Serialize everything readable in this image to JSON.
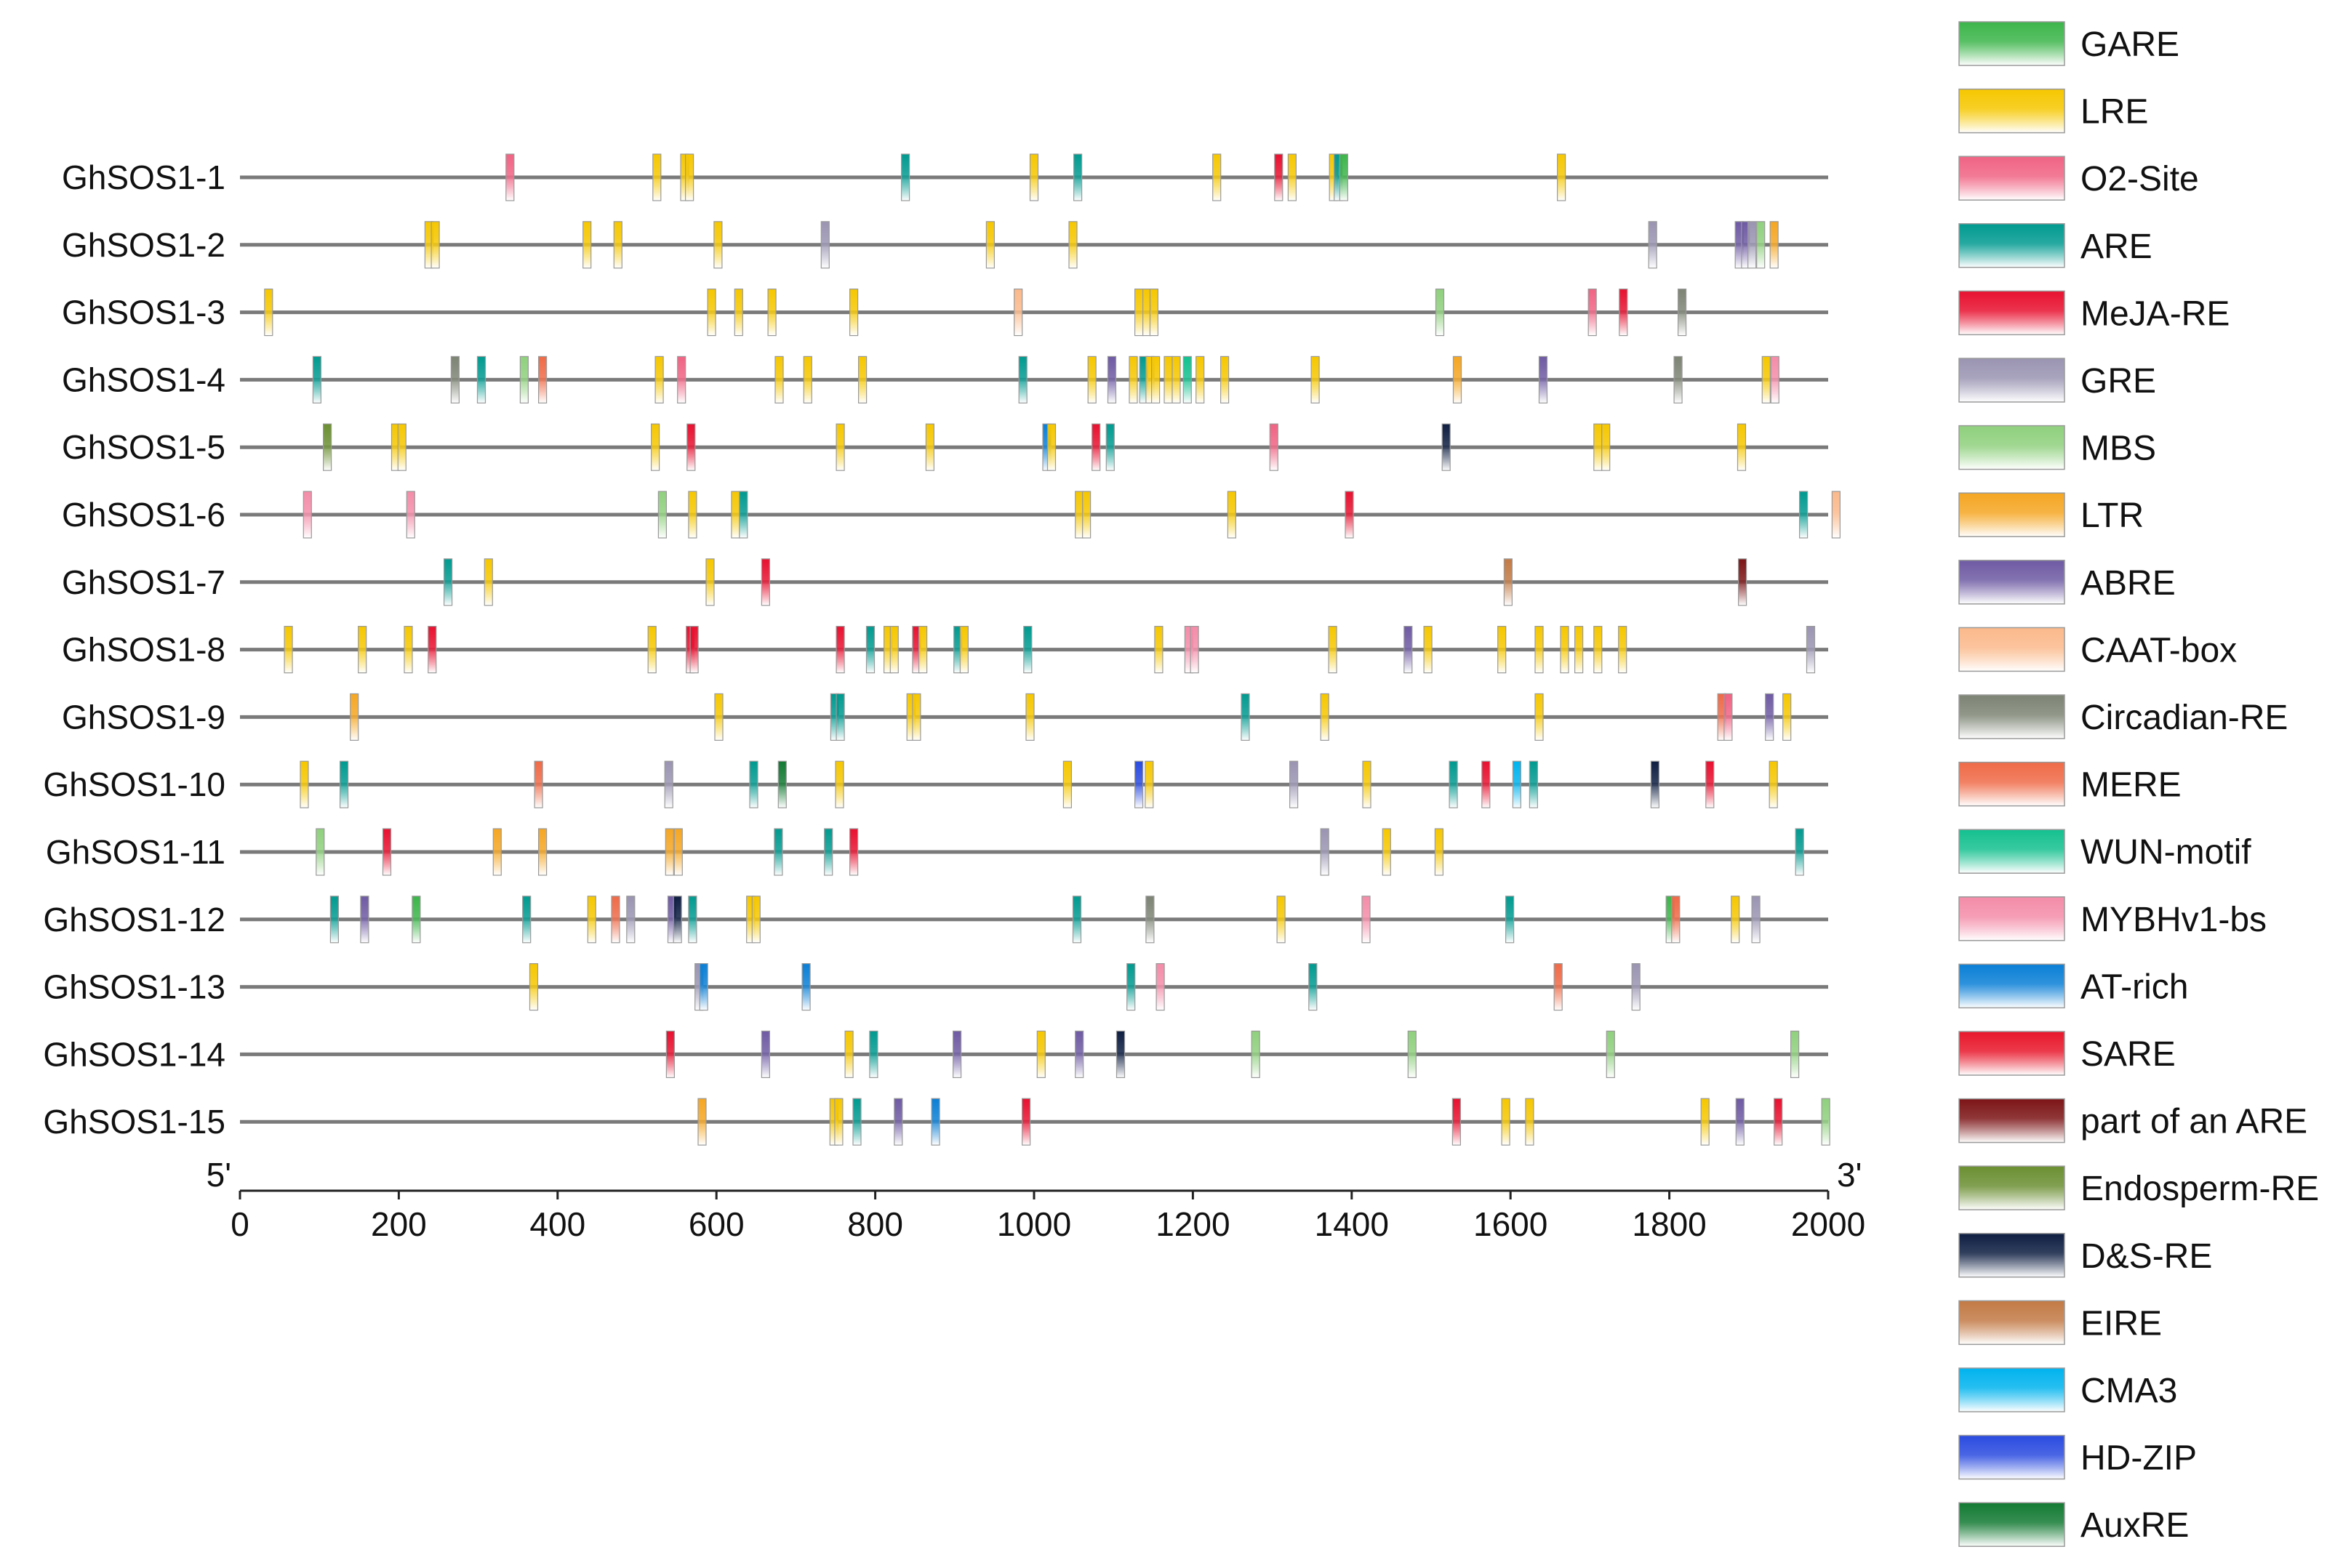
{
  "chart_data": {
    "type": "promoter-element map",
    "title": "",
    "xlabel": "",
    "ylabel": "",
    "xlim": [
      0,
      2000
    ],
    "xticks": [
      0,
      200,
      400,
      600,
      800,
      1000,
      1200,
      1400,
      1600,
      1800,
      2000
    ],
    "end_labels": {
      "start": "5'",
      "end": "3'"
    },
    "elements": [
      {
        "name": "GARE",
        "color": "#3cb54a"
      },
      {
        "name": "LRE",
        "color": "#f6c700"
      },
      {
        "name": "O2-Site",
        "color": "#f06383"
      },
      {
        "name": "ARE",
        "color": "#009a90"
      },
      {
        "name": "MeJA-RE",
        "color": "#e8102f"
      },
      {
        "name": "GRE",
        "color": "#9a94b2"
      },
      {
        "name": "MBS",
        "color": "#8fd07d"
      },
      {
        "name": "LTR",
        "color": "#f5a623"
      },
      {
        "name": "ABRE",
        "color": "#6e5aa3"
      },
      {
        "name": "CAAT-box",
        "color": "#fbb98b"
      },
      {
        "name": "Circadian-RE",
        "color": "#7d8474"
      },
      {
        "name": "MERE",
        "color": "#ef6a47"
      },
      {
        "name": "WUN-motif",
        "color": "#14c08f"
      },
      {
        "name": "MYBHv1-bs",
        "color": "#f48ca8"
      },
      {
        "name": "AT-rich",
        "color": "#0a7fd6"
      },
      {
        "name": "SARE",
        "color": "#e8172b"
      },
      {
        "name": "part of an ARE",
        "color": "#7c1416"
      },
      {
        "name": "Endosperm-RE",
        "color": "#6b8f32"
      },
      {
        "name": "D&S-RE",
        "color": "#0e1e42"
      },
      {
        "name": "EIRE",
        "color": "#c27a45"
      },
      {
        "name": "CMA3",
        "color": "#00b3ee"
      },
      {
        "name": "HD-ZIP",
        "color": "#2a4be0"
      },
      {
        "name": "AuxRE",
        "color": "#137a33"
      }
    ],
    "genes": [
      {
        "name": "GhSOS1-1",
        "sites": [
          [
            340,
            "O2-Site"
          ],
          [
            525,
            "LRE"
          ],
          [
            560,
            "LRE"
          ],
          [
            566,
            "LRE"
          ],
          [
            838,
            "ARE"
          ],
          [
            1000,
            "LRE"
          ],
          [
            1055,
            "ARE"
          ],
          [
            1230,
            "LRE"
          ],
          [
            1308,
            "MeJA-RE"
          ],
          [
            1325,
            "LRE"
          ],
          [
            1377,
            "LRE"
          ],
          [
            1383,
            "ARE"
          ],
          [
            1390,
            "GARE"
          ],
          [
            1664,
            "LRE"
          ]
        ]
      },
      {
        "name": "GhSOS1-2",
        "sites": [
          [
            238,
            "LRE"
          ],
          [
            246,
            "LRE"
          ],
          [
            437,
            "LRE"
          ],
          [
            476,
            "LRE"
          ],
          [
            602,
            "LRE"
          ],
          [
            737,
            "GRE"
          ],
          [
            945,
            "LRE"
          ],
          [
            1049,
            "LRE"
          ],
          [
            1779,
            "GRE"
          ],
          [
            1888,
            "ABRE"
          ],
          [
            1896,
            "ABRE"
          ],
          [
            1904,
            "GRE"
          ],
          [
            1915,
            "MBS"
          ],
          [
            1932,
            "LTR"
          ]
        ]
      },
      {
        "name": "GhSOS1-3",
        "sites": [
          [
            36,
            "LRE"
          ],
          [
            594,
            "LRE"
          ],
          [
            628,
            "LRE"
          ],
          [
            670,
            "LRE"
          ],
          [
            773,
            "LRE"
          ],
          [
            980,
            "CAAT-box"
          ],
          [
            1132,
            "LRE"
          ],
          [
            1142,
            "LRE"
          ],
          [
            1151,
            "LRE"
          ],
          [
            1511,
            "MBS"
          ],
          [
            1703,
            "O2-Site"
          ],
          [
            1742,
            "MeJA-RE"
          ],
          [
            1816,
            "Circadian-RE"
          ]
        ]
      },
      {
        "name": "GhSOS1-4",
        "sites": [
          [
            97,
            "ARE"
          ],
          [
            271,
            "Circadian-RE"
          ],
          [
            304,
            "ARE"
          ],
          [
            358,
            "MBS"
          ],
          [
            381,
            "MERE"
          ],
          [
            528,
            "LRE"
          ],
          [
            556,
            "O2-Site"
          ],
          [
            679,
            "LRE"
          ],
          [
            715,
            "LRE"
          ],
          [
            784,
            "LRE"
          ],
          [
            986,
            "ARE"
          ],
          [
            1073,
            "LRE"
          ],
          [
            1098,
            "ABRE"
          ],
          [
            1125,
            "LRE"
          ],
          [
            1138,
            "ARE"
          ],
          [
            1146,
            "LRE"
          ],
          [
            1153,
            "LRE"
          ],
          [
            1169,
            "LRE"
          ],
          [
            1179,
            "LRE"
          ],
          [
            1193,
            "WUN-motif"
          ],
          [
            1209,
            "LRE"
          ],
          [
            1240,
            "LRE"
          ],
          [
            1354,
            "LRE"
          ],
          [
            1533,
            "LTR"
          ],
          [
            1641,
            "ABRE"
          ],
          [
            1811,
            "Circadian-RE"
          ],
          [
            1922,
            "LRE"
          ],
          [
            1933,
            "MYBHv1-bs"
          ]
        ]
      },
      {
        "name": "GhSOS1-5",
        "sites": [
          [
            110,
            "Endosperm-RE"
          ],
          [
            196,
            "LRE"
          ],
          [
            204,
            "LRE"
          ],
          [
            523,
            "LRE"
          ],
          [
            568,
            "MeJA-RE"
          ],
          [
            756,
            "LRE"
          ],
          [
            869,
            "LRE"
          ],
          [
            1016,
            "AT-rich"
          ],
          [
            1022,
            "LRE"
          ],
          [
            1078,
            "MeJA-RE"
          ],
          [
            1096,
            "ARE"
          ],
          [
            1302,
            "O2-Site"
          ],
          [
            1519,
            "D&S-RE"
          ],
          [
            1710,
            "LRE"
          ],
          [
            1720,
            "LRE"
          ],
          [
            1891,
            "LRE"
          ]
        ]
      },
      {
        "name": "GhSOS1-6",
        "sites": [
          [
            85,
            "MYBHv1-bs"
          ],
          [
            215,
            "MYBHv1-bs"
          ],
          [
            532,
            "MBS"
          ],
          [
            570,
            "LRE"
          ],
          [
            624,
            "LRE"
          ],
          [
            634,
            "ARE"
          ],
          [
            1057,
            "LRE"
          ],
          [
            1066,
            "LRE"
          ],
          [
            1249,
            "LRE"
          ],
          [
            1397,
            "MeJA-RE"
          ],
          [
            1969,
            "ARE"
          ],
          [
            2010,
            "CAAT-box"
          ]
        ]
      },
      {
        "name": "GhSOS1-7",
        "sites": [
          [
            262,
            "ARE"
          ],
          [
            313,
            "LRE"
          ],
          [
            592,
            "LRE"
          ],
          [
            662,
            "MeJA-RE"
          ],
          [
            1597,
            "EIRE"
          ],
          [
            1892,
            "part of an ARE"
          ]
        ]
      },
      {
        "name": "GhSOS1-8",
        "sites": [
          [
            61,
            "LRE"
          ],
          [
            154,
            "LRE"
          ],
          [
            212,
            "LRE"
          ],
          [
            242,
            "MeJA-RE"
          ],
          [
            519,
            "LRE"
          ],
          [
            567,
            "MeJA-RE"
          ],
          [
            572,
            "MeJA-RE"
          ],
          [
            756,
            "MeJA-RE"
          ],
          [
            794,
            "ARE"
          ],
          [
            816,
            "LRE"
          ],
          [
            824,
            "LRE"
          ],
          [
            852,
            "MeJA-RE"
          ],
          [
            860,
            "LRE"
          ],
          [
            904,
            "ARE"
          ],
          [
            912,
            "LRE"
          ],
          [
            992,
            "ARE"
          ],
          [
            1157,
            "LRE"
          ],
          [
            1195,
            "MYBHv1-bs"
          ],
          [
            1202,
            "MYBHv1-bs"
          ],
          [
            1376,
            "LRE"
          ],
          [
            1471,
            "ABRE"
          ],
          [
            1496,
            "LRE"
          ],
          [
            1589,
            "LRE"
          ],
          [
            1636,
            "LRE"
          ],
          [
            1668,
            "LRE"
          ],
          [
            1686,
            "LRE"
          ],
          [
            1710,
            "LRE"
          ],
          [
            1741,
            "LRE"
          ],
          [
            1978,
            "GRE"
          ]
        ]
      },
      {
        "name": "GhSOS1-9",
        "sites": [
          [
            144,
            "LTR"
          ],
          [
            603,
            "LRE"
          ],
          [
            749,
            "ARE"
          ],
          [
            756,
            "ARE"
          ],
          [
            845,
            "LRE"
          ],
          [
            852,
            "LRE"
          ],
          [
            995,
            "LRE"
          ],
          [
            1266,
            "ARE"
          ],
          [
            1366,
            "LRE"
          ],
          [
            1636,
            "LRE"
          ],
          [
            1866,
            "MERE"
          ],
          [
            1874,
            "O2-Site"
          ],
          [
            1926,
            "ABRE"
          ],
          [
            1948,
            "LRE"
          ]
        ]
      },
      {
        "name": "GhSOS1-10",
        "sites": [
          [
            81,
            "LRE"
          ],
          [
            131,
            "ARE"
          ],
          [
            376,
            "MERE"
          ],
          [
            540,
            "GRE"
          ],
          [
            647,
            "ARE"
          ],
          [
            683,
            "AuxRE"
          ],
          [
            755,
            "LRE"
          ],
          [
            1042,
            "LRE"
          ],
          [
            1132,
            "HD-ZIP"
          ],
          [
            1145,
            "LRE"
          ],
          [
            1327,
            "GRE"
          ],
          [
            1419,
            "LRE"
          ],
          [
            1528,
            "ARE"
          ],
          [
            1569,
            "MeJA-RE"
          ],
          [
            1608,
            "CMA3"
          ],
          [
            1629,
            "ARE"
          ],
          [
            1782,
            "D&S-RE"
          ],
          [
            1851,
            "MeJA-RE"
          ],
          [
            1931,
            "LRE"
          ]
        ]
      },
      {
        "name": "GhSOS1-11",
        "sites": [
          [
            101,
            "MBS"
          ],
          [
            185,
            "MeJA-RE"
          ],
          [
            324,
            "LTR"
          ],
          [
            381,
            "LTR"
          ],
          [
            541,
            "LTR"
          ],
          [
            552,
            "LTR"
          ],
          [
            678,
            "ARE"
          ],
          [
            741,
            "ARE"
          ],
          [
            773,
            "MeJA-RE"
          ],
          [
            1366,
            "GRE"
          ],
          [
            1444,
            "LRE"
          ],
          [
            1510,
            "LRE"
          ],
          [
            1964,
            "ARE"
          ]
        ]
      },
      {
        "name": "GhSOS1-12",
        "sites": [
          [
            119,
            "ARE"
          ],
          [
            157,
            "ABRE"
          ],
          [
            222,
            "GARE"
          ],
          [
            361,
            "ARE"
          ],
          [
            443,
            "LRE"
          ],
          [
            473,
            "MERE"
          ],
          [
            492,
            "GRE"
          ],
          [
            544,
            "ABRE"
          ],
          [
            551,
            "D&S-RE"
          ],
          [
            570,
            "ARE"
          ],
          [
            643,
            "LRE"
          ],
          [
            650,
            "LRE"
          ],
          [
            1054,
            "ARE"
          ],
          [
            1146,
            "Circadian-RE"
          ],
          [
            1311,
            "LRE"
          ],
          [
            1418,
            "MYBHv1-bs"
          ],
          [
            1599,
            "ARE"
          ],
          [
            1801,
            "GARE"
          ],
          [
            1808,
            "MERE"
          ],
          [
            1883,
            "LRE"
          ],
          [
            1909,
            "GRE"
          ]
        ]
      },
      {
        "name": "GhSOS1-13",
        "sites": [
          [
            370,
            "LRE"
          ],
          [
            578,
            "GRE"
          ],
          [
            584,
            "AT-rich"
          ],
          [
            713,
            "AT-rich"
          ],
          [
            1122,
            "ARE"
          ],
          [
            1159,
            "MYBHv1-bs"
          ],
          [
            1351,
            "ARE"
          ],
          [
            1660,
            "MERE"
          ],
          [
            1758,
            "GRE"
          ]
        ]
      },
      {
        "name": "GhSOS1-14",
        "sites": [
          [
            542,
            "MeJA-RE"
          ],
          [
            662,
            "ABRE"
          ],
          [
            767,
            "LRE"
          ],
          [
            798,
            "ARE"
          ],
          [
            903,
            "ABRE"
          ],
          [
            1009,
            "LRE"
          ],
          [
            1057,
            "ABRE"
          ],
          [
            1109,
            "D&S-RE"
          ],
          [
            1279,
            "MBS"
          ],
          [
            1476,
            "MBS"
          ],
          [
            1726,
            "MBS"
          ],
          [
            1958,
            "MBS"
          ]
        ]
      },
      {
        "name": "GhSOS1-15",
        "sites": [
          [
            582,
            "LTR"
          ],
          [
            748,
            "LRE"
          ],
          [
            754,
            "LRE"
          ],
          [
            777,
            "ARE"
          ],
          [
            829,
            "ABRE"
          ],
          [
            876,
            "AT-rich"
          ],
          [
            990,
            "MeJA-RE"
          ],
          [
            1532,
            "MeJA-RE"
          ],
          [
            1594,
            "LRE"
          ],
          [
            1624,
            "LRE"
          ],
          [
            1845,
            "LRE"
          ],
          [
            1889,
            "ABRE"
          ],
          [
            1937,
            "MeJA-RE"
          ],
          [
            1997,
            "MBS"
          ]
        ]
      }
    ]
  }
}
